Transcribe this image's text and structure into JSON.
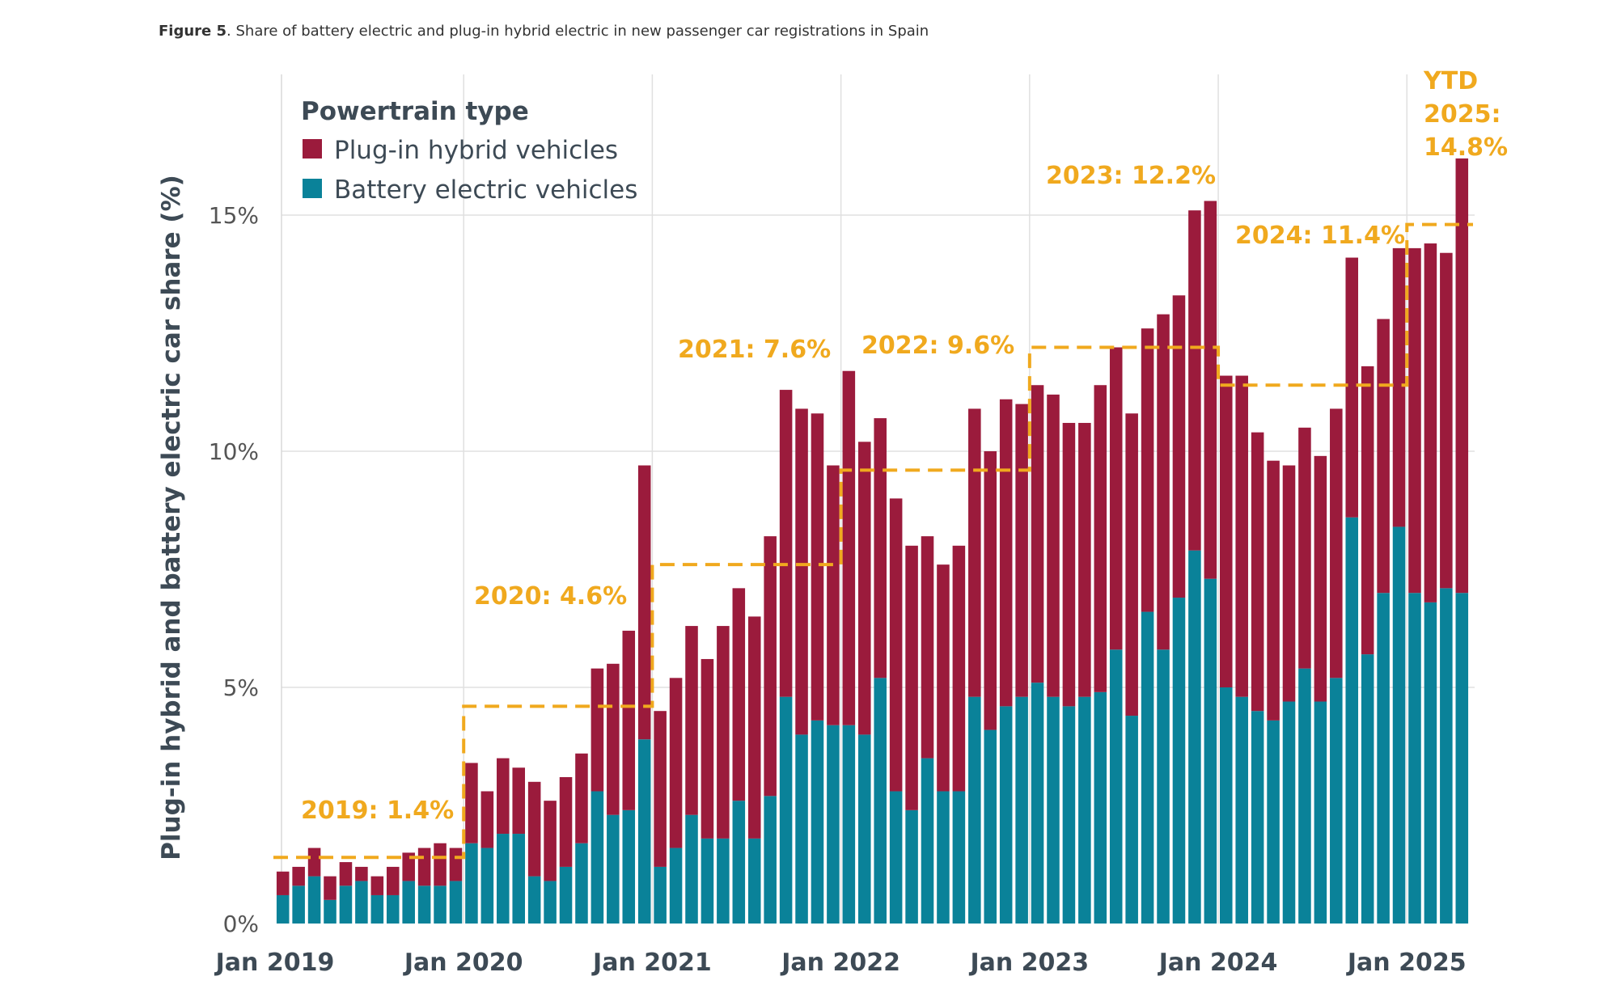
{
  "caption": {
    "figure_label": "Figure 5",
    "text": ". Share of battery electric and plug-in hybrid electric in new passenger car registrations in Spain"
  },
  "chart_data": {
    "type": "bar",
    "stacked": true,
    "ylabel": "Plug-in hybrid and battery electric car share (%)",
    "xlabel": "",
    "ylim": [
      0,
      18
    ],
    "y_ticks": [
      "0%",
      "5%",
      "10%",
      "15%"
    ],
    "x_ticks": [
      "Jan 2019",
      "Jan 2020",
      "Jan 2021",
      "Jan 2022",
      "Jan 2023",
      "Jan 2024",
      "Jan 2025"
    ],
    "grid": true,
    "legend": {
      "title": "Powertrain type",
      "position": "top-left"
    },
    "x_range": "Jan 2019 – Apr 2025 (monthly)",
    "series": [
      {
        "name": "Plug-in hybrid vehicles",
        "color": "#9b1b3c",
        "values": [
          0.5,
          0.4,
          0.6,
          0.5,
          0.5,
          0.3,
          0.4,
          0.6,
          0.6,
          0.8,
          0.9,
          0.7,
          1.7,
          1.2,
          1.6,
          1.4,
          2.0,
          1.7,
          1.9,
          1.9,
          2.6,
          3.2,
          3.8,
          5.8,
          3.3,
          3.6,
          4.0,
          3.8,
          4.5,
          4.5,
          4.7,
          5.5,
          6.5,
          6.9,
          6.5,
          5.5,
          7.5,
          6.2,
          5.5,
          6.2,
          5.6,
          4.7,
          4.8,
          5.2,
          6.1,
          5.9,
          6.5,
          6.2,
          6.3,
          6.4,
          6.0,
          5.8,
          6.5,
          6.4,
          6.4,
          6.0,
          7.1,
          6.4,
          7.2,
          8.0,
          6.6,
          6.8,
          5.9,
          5.5,
          5.0,
          5.1,
          5.2,
          5.7,
          5.5,
          6.1,
          5.8,
          5.9,
          7.3,
          7.6,
          7.1,
          9.2
        ]
      },
      {
        "name": "Battery electric vehicles",
        "color": "#0a8299",
        "values": [
          0.6,
          0.8,
          1.0,
          0.5,
          0.8,
          0.9,
          0.6,
          0.6,
          0.9,
          0.8,
          0.8,
          0.9,
          1.7,
          1.6,
          1.9,
          1.9,
          1.0,
          0.9,
          1.2,
          1.7,
          2.8,
          2.3,
          2.4,
          3.9,
          1.2,
          1.6,
          2.3,
          1.8,
          1.8,
          2.6,
          1.8,
          2.7,
          4.8,
          4.0,
          4.3,
          4.2,
          4.2,
          4.0,
          5.2,
          2.8,
          2.4,
          3.5,
          2.8,
          2.8,
          4.8,
          4.1,
          4.6,
          4.8,
          5.1,
          4.8,
          4.6,
          4.8,
          4.9,
          5.8,
          4.4,
          6.6,
          5.8,
          6.9,
          7.9,
          7.3,
          5.0,
          4.8,
          4.5,
          4.3,
          4.7,
          5.4,
          4.7,
          5.2,
          8.6,
          5.7,
          7.0,
          8.4,
          7.0,
          6.8,
          7.1,
          7.0
        ]
      }
    ],
    "annotations": [
      {
        "label": "2019: 1.4%",
        "year": 2019,
        "value": 1.4
      },
      {
        "label": "2020: 4.6%",
        "year": 2020,
        "value": 4.6
      },
      {
        "label": "2021: 7.6%",
        "year": 2021,
        "value": 7.6
      },
      {
        "label": "2022: 9.6%",
        "year": 2022,
        "value": 9.6
      },
      {
        "label": "2023: 12.2%",
        "year": 2023,
        "value": 12.2
      },
      {
        "label": "2024: 11.4%",
        "year": 2024,
        "value": 11.4
      },
      {
        "label_lines": [
          "YTD",
          "2025:",
          "14.8%"
        ],
        "year": 2025,
        "value": 14.8
      }
    ],
    "annotation_color": "#f0a91e"
  }
}
